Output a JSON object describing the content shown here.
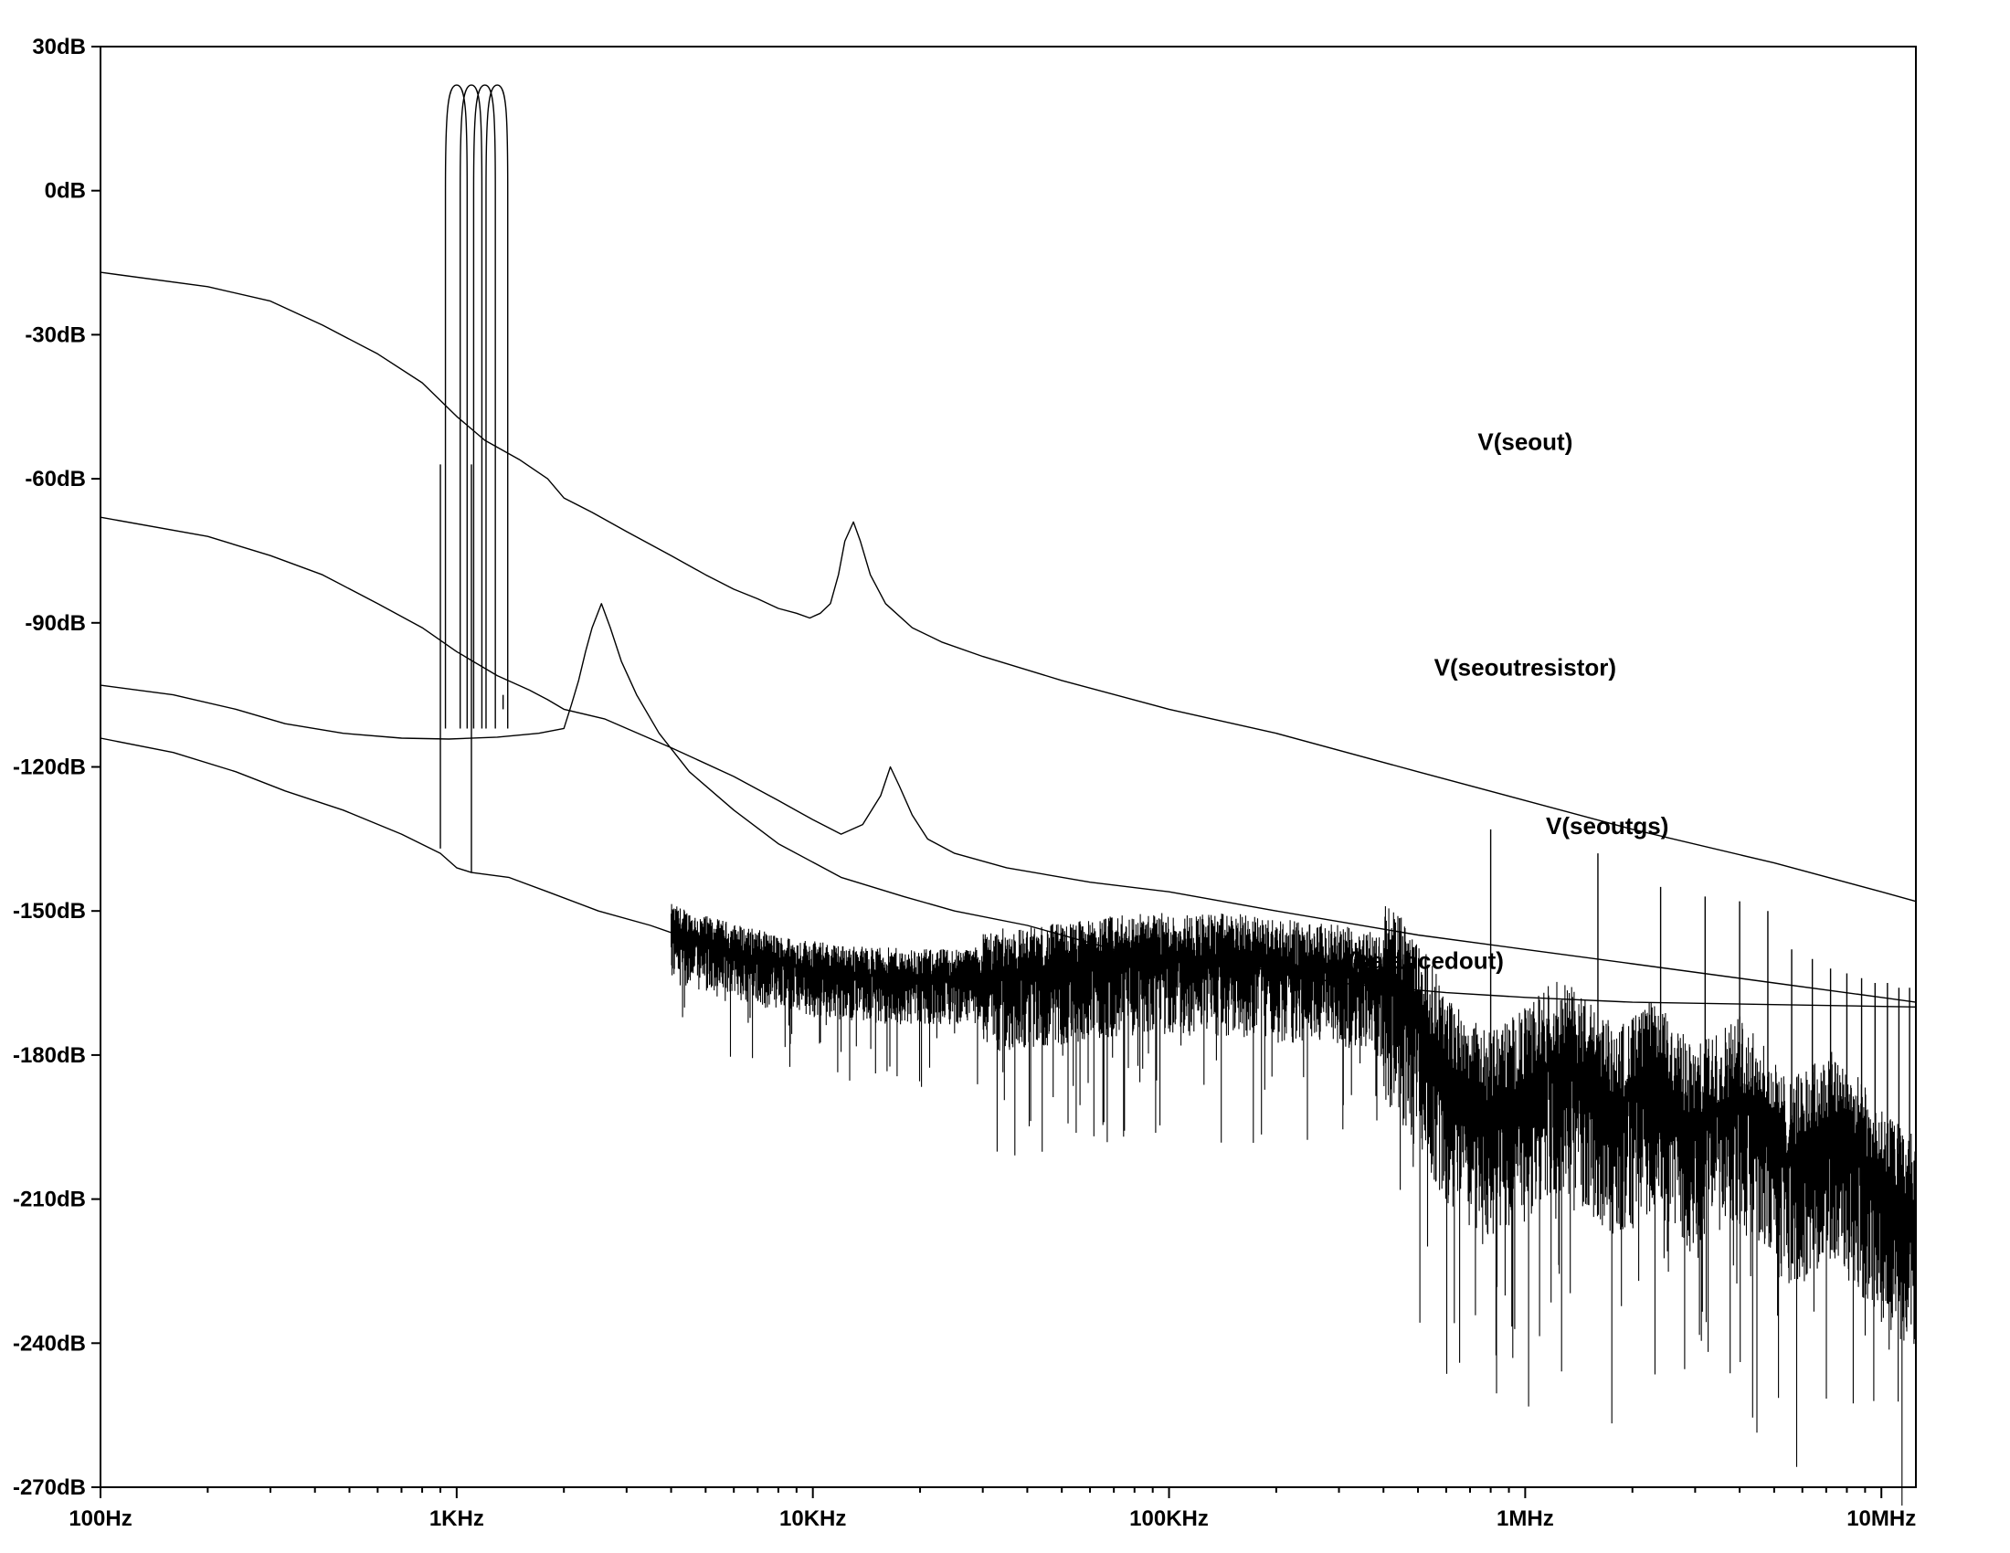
{
  "chart_data": {
    "type": "line",
    "title": "",
    "xlabel": "",
    "ylabel": "",
    "x_scale": "log",
    "xlim": [
      100,
      12500000
    ],
    "ylim": [
      -270,
      30
    ],
    "grid": false,
    "x_ticks": [
      {
        "value": 100,
        "label": "100Hz"
      },
      {
        "value": 1000,
        "label": "1KHz"
      },
      {
        "value": 10000,
        "label": "10KHz"
      },
      {
        "value": 100000,
        "label": "100KHz"
      },
      {
        "value": 1000000,
        "label": "1MHz"
      },
      {
        "value": 10000000,
        "label": "10MHz"
      }
    ],
    "y_ticks": [
      {
        "value": 30,
        "label": "30dB"
      },
      {
        "value": 0,
        "label": "0dB"
      },
      {
        "value": -30,
        "label": "-30dB"
      },
      {
        "value": -60,
        "label": "-60dB"
      },
      {
        "value": -90,
        "label": "-90dB"
      },
      {
        "value": -120,
        "label": "-120dB"
      },
      {
        "value": -150,
        "label": "-150dB"
      },
      {
        "value": -180,
        "label": "-180dB"
      },
      {
        "value": -210,
        "label": "-210dB"
      },
      {
        "value": -240,
        "label": "-240dB"
      },
      {
        "value": -270,
        "label": "-270dB"
      }
    ],
    "series": [
      {
        "name": "V(seout)",
        "label_at": [
          1000000,
          -54
        ],
        "points": [
          [
            100,
            -17
          ],
          [
            200,
            -20
          ],
          [
            300,
            -23
          ],
          [
            420,
            -28
          ],
          [
            600,
            -34
          ],
          [
            800,
            -40
          ],
          [
            1000,
            -47
          ],
          [
            1200,
            -52
          ],
          [
            1500,
            -56
          ],
          [
            1800,
            -60
          ],
          [
            2000,
            -64
          ],
          [
            2400,
            -67
          ],
          [
            3000,
            -71
          ],
          [
            4000,
            -76
          ],
          [
            5000,
            -80
          ],
          [
            6000,
            -83
          ],
          [
            7000,
            -85
          ],
          [
            8000,
            -87
          ],
          [
            9000,
            -88
          ],
          [
            9800,
            -89
          ],
          [
            10500,
            -88
          ],
          [
            11200,
            -86
          ],
          [
            11800,
            -80
          ],
          [
            12300,
            -73
          ],
          [
            13000,
            -69
          ],
          [
            13600,
            -73
          ],
          [
            14500,
            -80
          ],
          [
            16000,
            -86
          ],
          [
            19000,
            -91
          ],
          [
            23000,
            -94
          ],
          [
            30000,
            -97
          ],
          [
            50000,
            -102
          ],
          [
            100000,
            -108
          ],
          [
            200000,
            -113
          ],
          [
            500000,
            -121
          ],
          [
            1000000,
            -127
          ],
          [
            2000000,
            -133
          ],
          [
            5000000,
            -140
          ],
          [
            10000000,
            -146
          ],
          [
            12500000,
            -148
          ]
        ]
      },
      {
        "name": "V(seoutresistor)",
        "label_at": [
          1000000,
          -101
        ],
        "points": [
          [
            100,
            -68
          ],
          [
            200,
            -72
          ],
          [
            300,
            -76
          ],
          [
            420,
            -80
          ],
          [
            600,
            -86
          ],
          [
            800,
            -91
          ],
          [
            1000,
            -96
          ],
          [
            1300,
            -101
          ],
          [
            1600,
            -104
          ],
          [
            1800,
            -106
          ],
          [
            2000,
            -108
          ],
          [
            2600,
            -110
          ],
          [
            4000,
            -116
          ],
          [
            6000,
            -122
          ],
          [
            8000,
            -127
          ],
          [
            10000,
            -131
          ],
          [
            12000,
            -134
          ],
          [
            13800,
            -132
          ],
          [
            15500,
            -126
          ],
          [
            16500,
            -120
          ],
          [
            17500,
            -124
          ],
          [
            19000,
            -130
          ],
          [
            21000,
            -135
          ],
          [
            25000,
            -138
          ],
          [
            35000,
            -141
          ],
          [
            60000,
            -144
          ],
          [
            100000,
            -146
          ],
          [
            200000,
            -150
          ],
          [
            500000,
            -155
          ],
          [
            1000000,
            -158
          ],
          [
            2000000,
            -161
          ],
          [
            5000000,
            -165
          ],
          [
            10000000,
            -168
          ],
          [
            12500000,
            -169
          ]
        ]
      },
      {
        "name": "V(seoutgs)",
        "label_at": [
          1700000,
          -134
        ],
        "points": [
          [
            100,
            -103
          ],
          [
            160,
            -105
          ],
          [
            240,
            -108
          ],
          [
            330,
            -111
          ],
          [
            480,
            -113
          ],
          [
            700,
            -114
          ],
          [
            950,
            -114.2
          ],
          [
            1300,
            -113.8
          ],
          [
            1700,
            -113
          ],
          [
            2000,
            -112
          ],
          [
            2100,
            -107
          ],
          [
            2200,
            -102
          ],
          [
            2300,
            -96
          ],
          [
            2400,
            -91
          ],
          [
            2550,
            -86
          ],
          [
            2700,
            -91
          ],
          [
            2900,
            -98
          ],
          [
            3200,
            -105
          ],
          [
            3700,
            -113
          ],
          [
            4500,
            -121
          ],
          [
            6000,
            -129
          ],
          [
            8000,
            -136
          ],
          [
            12000,
            -143
          ],
          [
            18000,
            -147
          ],
          [
            25000,
            -150
          ],
          [
            40000,
            -153
          ],
          [
            70000,
            -158
          ],
          [
            100000,
            -160
          ],
          [
            180000,
            -162
          ],
          [
            300000,
            -165
          ],
          [
            600000,
            -167
          ],
          [
            1000000,
            -168
          ],
          [
            2000000,
            -169
          ],
          [
            5000000,
            -169.5
          ],
          [
            12500000,
            -170
          ]
        ]
      },
      {
        "name": "V(balancedout)",
        "label_at": [
          500000,
          -162
        ],
        "points": [
          [
            100,
            -114
          ],
          [
            160,
            -117
          ],
          [
            240,
            -121
          ],
          [
            330,
            -125
          ],
          [
            480,
            -129
          ],
          [
            700,
            -134
          ],
          [
            900,
            -138
          ],
          [
            1000,
            -141
          ],
          [
            1100,
            -142
          ],
          [
            1400,
            -143
          ],
          [
            1800,
            -146
          ],
          [
            2500,
            -150
          ],
          [
            3500,
            -153
          ],
          [
            5000,
            -157
          ],
          [
            8000,
            -161
          ],
          [
            12000,
            -163
          ],
          [
            20000,
            -164
          ],
          [
            40000,
            -163
          ],
          [
            80000,
            -160
          ],
          [
            150000,
            -160
          ],
          [
            250000,
            -162
          ],
          [
            350000,
            -163
          ],
          [
            430000,
            -166
          ],
          [
            520000,
            -175
          ],
          [
            620000,
            -185
          ],
          [
            780000,
            -192
          ],
          [
            1000000,
            -187
          ],
          [
            1200000,
            -181
          ],
          [
            1400000,
            -183
          ],
          [
            1800000,
            -191
          ],
          [
            2300000,
            -185
          ],
          [
            3000000,
            -195
          ],
          [
            4000000,
            -188
          ],
          [
            5500000,
            -202
          ],
          [
            7500000,
            -195
          ],
          [
            10000000,
            -208
          ],
          [
            12500000,
            -214
          ]
        ]
      }
    ]
  }
}
